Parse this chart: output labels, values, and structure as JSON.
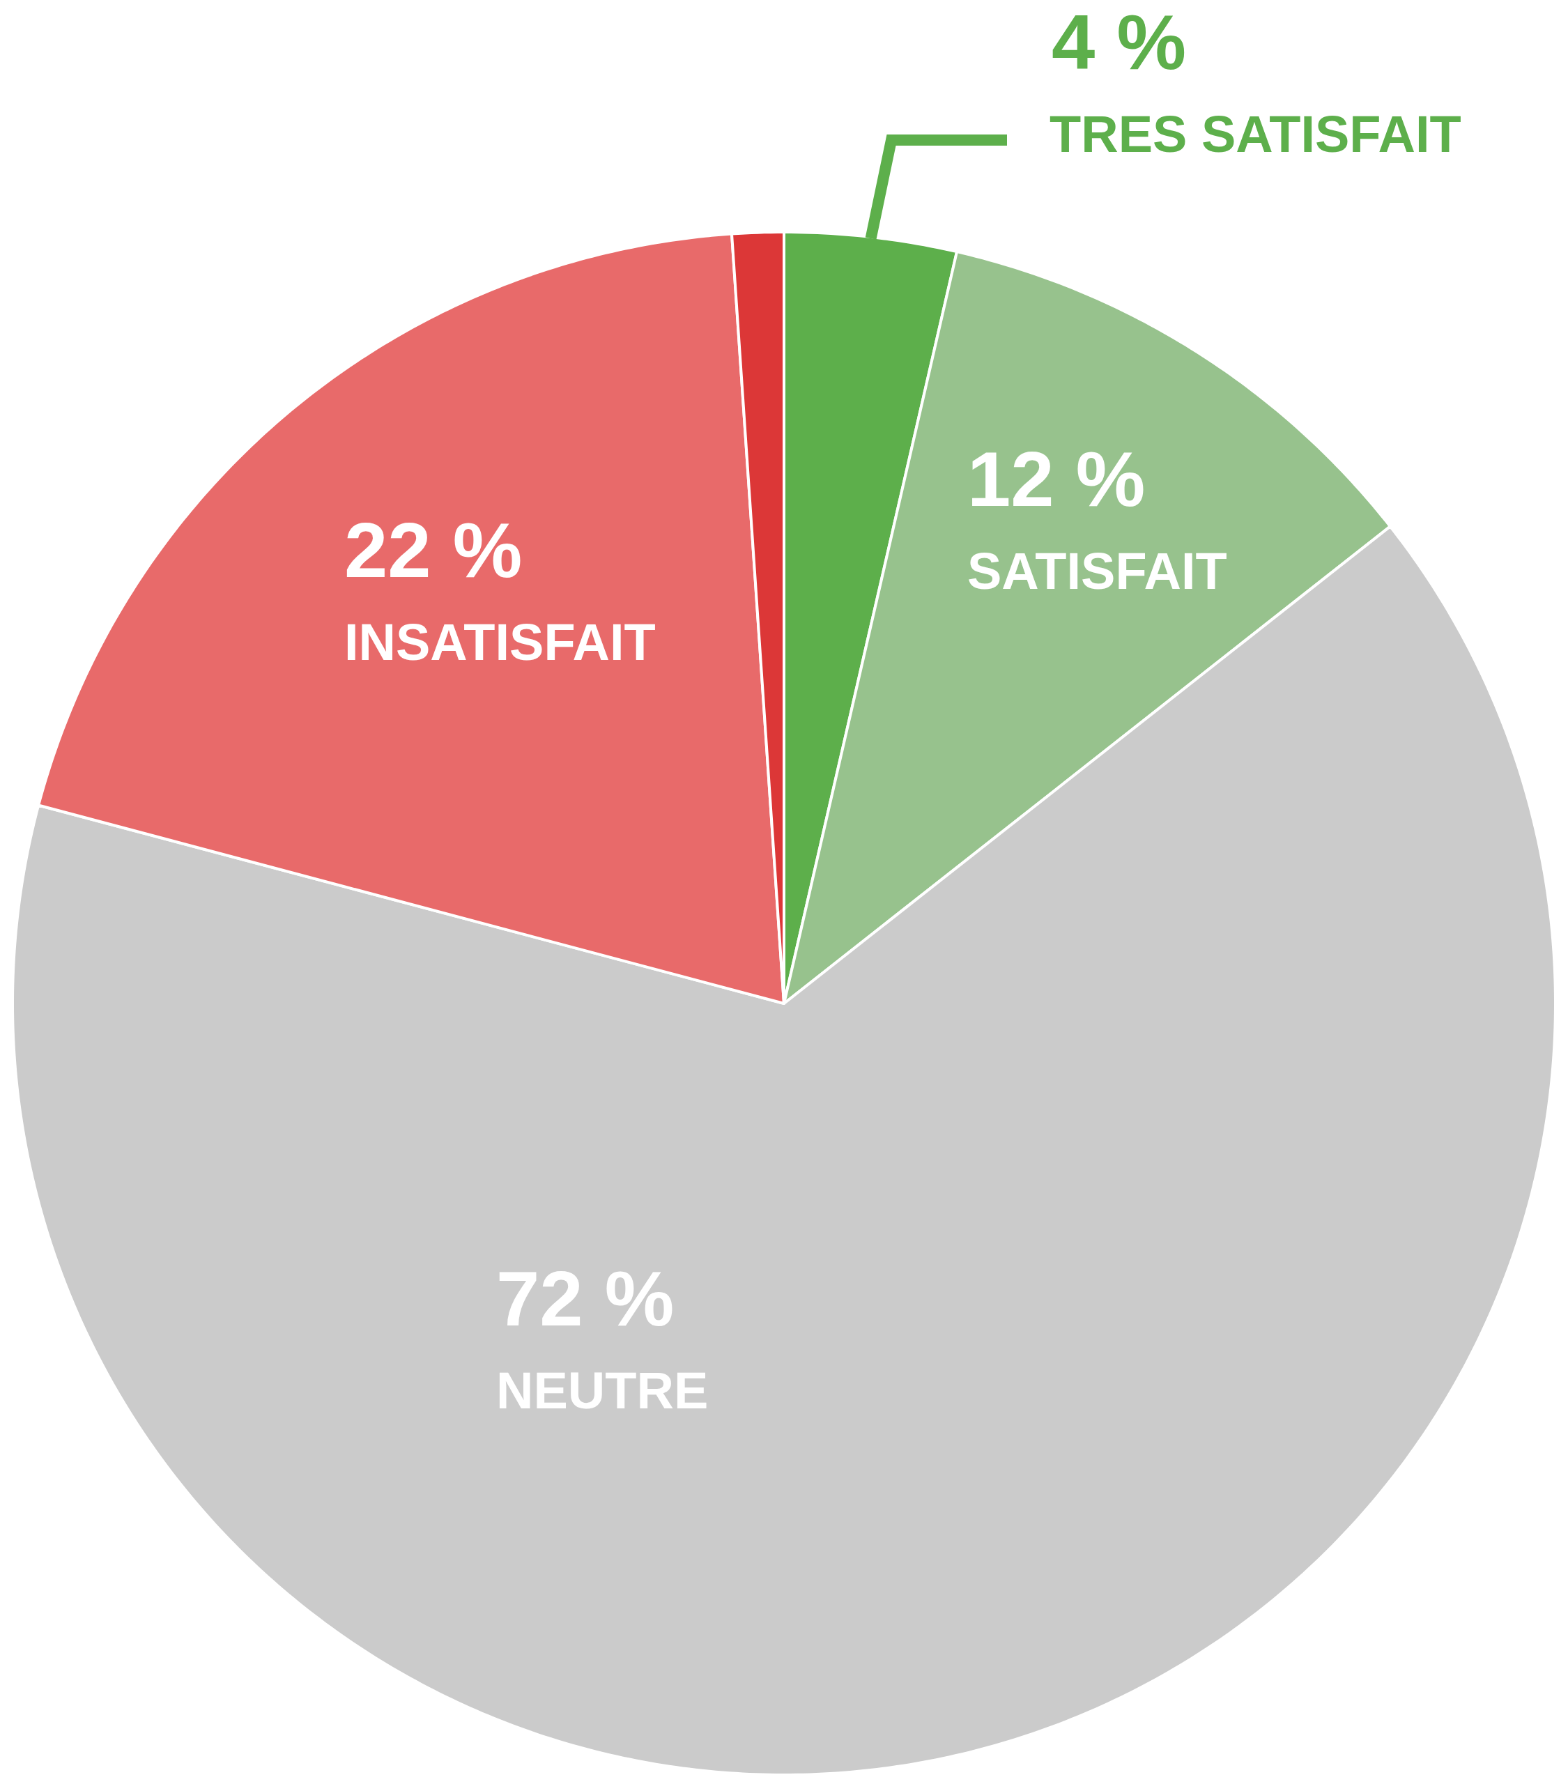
{
  "chart_data": {
    "type": "pie",
    "categories": [
      "TRES SATISFAIT",
      "SATISFAIT",
      "NEUTRE",
      "INSATISFAIT",
      null
    ],
    "values": [
      4,
      12,
      72,
      22,
      1.2
    ],
    "colors": [
      "#5daf4b",
      "#97c28d",
      "#cbcbcb",
      "#e86a6a",
      "#dc3737"
    ],
    "value_labels": [
      "4 %",
      "12 %",
      "72 %",
      "22 %",
      null
    ]
  }
}
